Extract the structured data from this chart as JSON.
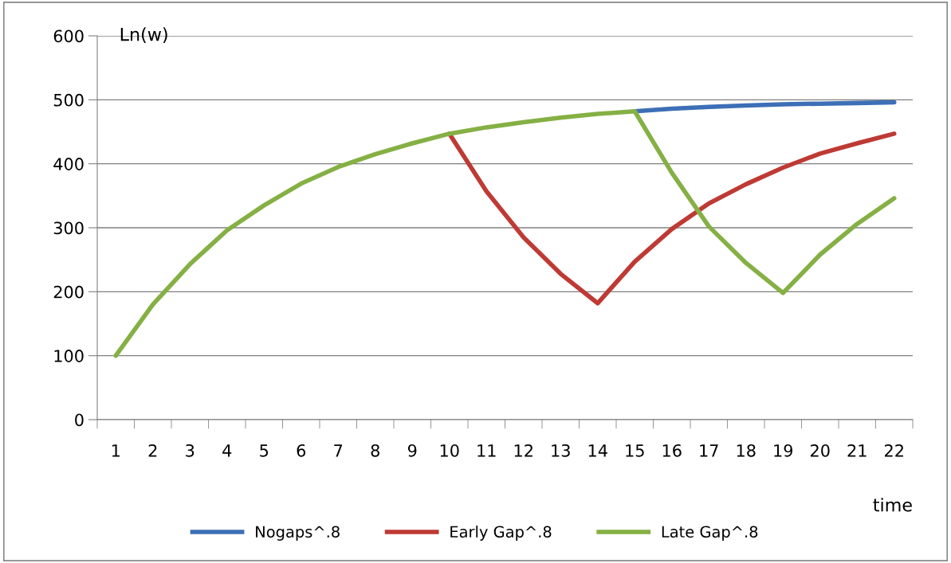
{
  "chart_data": {
    "type": "line",
    "ylabel": "Ln(w)",
    "xlabel": "time",
    "categories": [
      "1",
      "2",
      "3",
      "4",
      "5",
      "6",
      "7",
      "8",
      "9",
      "10",
      "11",
      "12",
      "13",
      "14",
      "15",
      "16",
      "17",
      "18",
      "19",
      "20",
      "21",
      "22"
    ],
    "series": [
      {
        "name": "Nogaps^.8",
        "color": "#3d6fb6",
        "values": [
          null,
          null,
          null,
          null,
          null,
          null,
          null,
          null,
          null,
          null,
          null,
          null,
          null,
          null,
          482,
          486,
          489,
          491,
          493,
          494,
          495,
          496
        ]
      },
      {
        "name": "Early Gap^.8",
        "color": "#be3a34",
        "values": [
          null,
          null,
          null,
          null,
          null,
          null,
          null,
          null,
          null,
          447,
          357,
          285,
          228,
          182,
          247,
          298,
          338,
          368,
          394,
          416,
          432,
          447
        ]
      },
      {
        "name": "Late Gap^.8",
        "color": "#85b044",
        "values": [
          100,
          180,
          243,
          296,
          335,
          369,
          395,
          415,
          432,
          447,
          457,
          465,
          472,
          478,
          482,
          386,
          302,
          245,
          198,
          258,
          306,
          346
        ]
      }
    ],
    "ylim": [
      0,
      600
    ],
    "yticks": [
      0,
      100,
      200,
      300,
      400,
      500,
      600
    ],
    "grid": "y",
    "legend": "bottom",
    "marker": "none",
    "line_style": "solid"
  }
}
